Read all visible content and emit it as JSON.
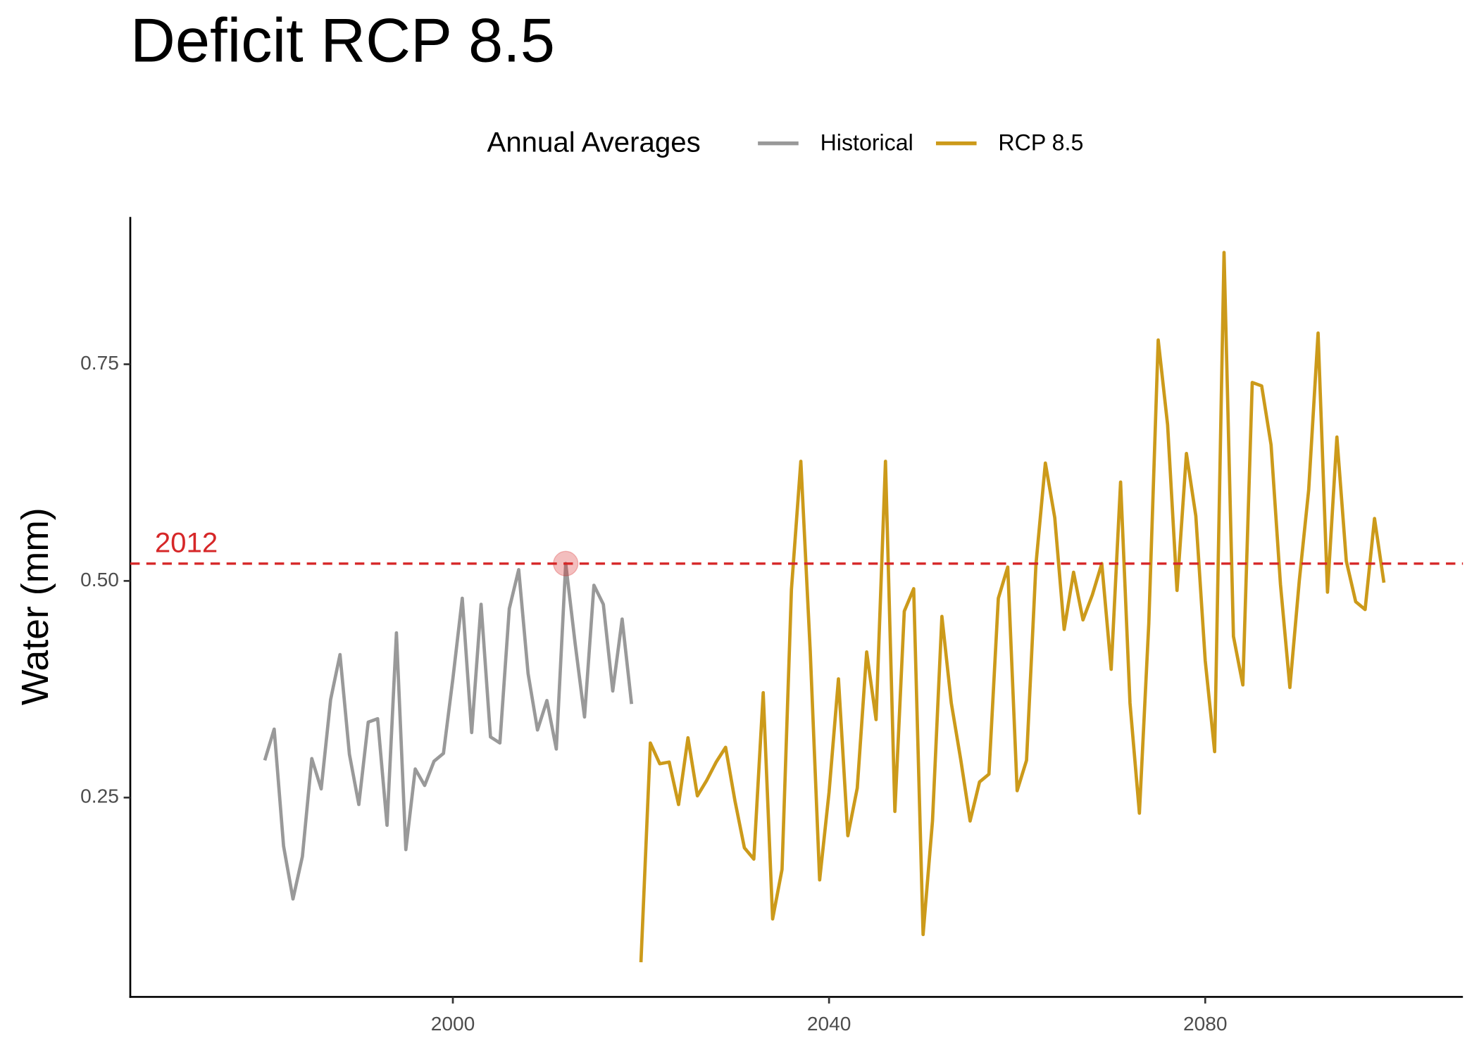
{
  "chart_data": {
    "type": "line",
    "title": "Deficit RCP 8.5",
    "y_label": "Water (mm)",
    "legend_title": "Annual Averages",
    "legend_position": "top",
    "xlim": [
      1965.7,
      2107.4
    ],
    "ylim": [
      0.02,
      0.92
    ],
    "xticks": [
      2000,
      2040,
      2080
    ],
    "yticks": [
      0.25,
      {
        "value": 0.5,
        "label": "0.50"
      },
      0.75
    ],
    "grid": false,
    "series": [
      {
        "name": "Historical",
        "color": "#999999",
        "x": [
          1980,
          1981,
          1982,
          1983,
          1984,
          1985,
          1986,
          1987,
          1988,
          1989,
          1990,
          1991,
          1992,
          1993,
          1994,
          1995,
          1996,
          1997,
          1998,
          1999,
          2000,
          2001,
          2002,
          2003,
          2004,
          2005,
          2006,
          2007,
          2008,
          2009,
          2010,
          2011,
          2012,
          2013,
          2014,
          2015,
          2016,
          2017,
          2018,
          2019
        ],
        "values": [
          0.293,
          0.329,
          0.194,
          0.133,
          0.182,
          0.295,
          0.26,
          0.363,
          0.415,
          0.3,
          0.242,
          0.337,
          0.341,
          0.218,
          0.44,
          0.19,
          0.283,
          0.264,
          0.292,
          0.301,
          0.387,
          0.48,
          0.325,
          0.473,
          0.32,
          0.313,
          0.468,
          0.513,
          0.393,
          0.328,
          0.362,
          0.306,
          0.52,
          0.428,
          0.343,
          0.495,
          0.473,
          0.373,
          0.456,
          0.358
        ]
      },
      {
        "name": "RCP 8.5",
        "color": "#CC9A1A",
        "x": [
          2020,
          2021,
          2022,
          2023,
          2024,
          2025,
          2026,
          2027,
          2028,
          2029,
          2030,
          2031,
          2032,
          2033,
          2034,
          2035,
          2036,
          2037,
          2038,
          2039,
          2040,
          2041,
          2042,
          2043,
          2044,
          2045,
          2046,
          2047,
          2048,
          2049,
          2050,
          2051,
          2052,
          2053,
          2054,
          2055,
          2056,
          2057,
          2058,
          2059,
          2060,
          2061,
          2062,
          2063,
          2064,
          2065,
          2066,
          2067,
          2068,
          2069,
          2070,
          2071,
          2072,
          2073,
          2074,
          2075,
          2076,
          2077,
          2078,
          2079,
          2080,
          2081,
          2082,
          2083,
          2084,
          2085,
          2086,
          2087,
          2088,
          2089,
          2090,
          2091,
          2092,
          2093,
          2094,
          2095,
          2096,
          2097,
          2098,
          2099
        ],
        "values": [
          0.06,
          0.313,
          0.289,
          0.291,
          0.242,
          0.319,
          0.252,
          0.27,
          0.291,
          0.308,
          0.246,
          0.192,
          0.179,
          0.371,
          0.11,
          0.167,
          0.49,
          0.638,
          0.419,
          0.155,
          0.256,
          0.387,
          0.206,
          0.261,
          0.418,
          0.34,
          0.638,
          0.234,
          0.465,
          0.491,
          0.092,
          0.223,
          0.459,
          0.359,
          0.294,
          0.223,
          0.268,
          0.277,
          0.48,
          0.516,
          0.258,
          0.293,
          0.519,
          0.636,
          0.573,
          0.444,
          0.51,
          0.455,
          0.484,
          0.52,
          0.398,
          0.614,
          0.359,
          0.232,
          0.451,
          0.778,
          0.68,
          0.489,
          0.647,
          0.575,
          0.408,
          0.303,
          0.879,
          0.436,
          0.38,
          0.729,
          0.725,
          0.657,
          0.496,
          0.377,
          0.5,
          0.605,
          0.786,
          0.487,
          0.666,
          0.523,
          0.476,
          0.467,
          0.572,
          0.498
        ]
      }
    ],
    "reference_line": {
      "value": 0.52,
      "label": "2012",
      "color": "#D62728"
    },
    "highlight": {
      "x": 2012,
      "y": 0.52,
      "color": "#D62728"
    }
  }
}
